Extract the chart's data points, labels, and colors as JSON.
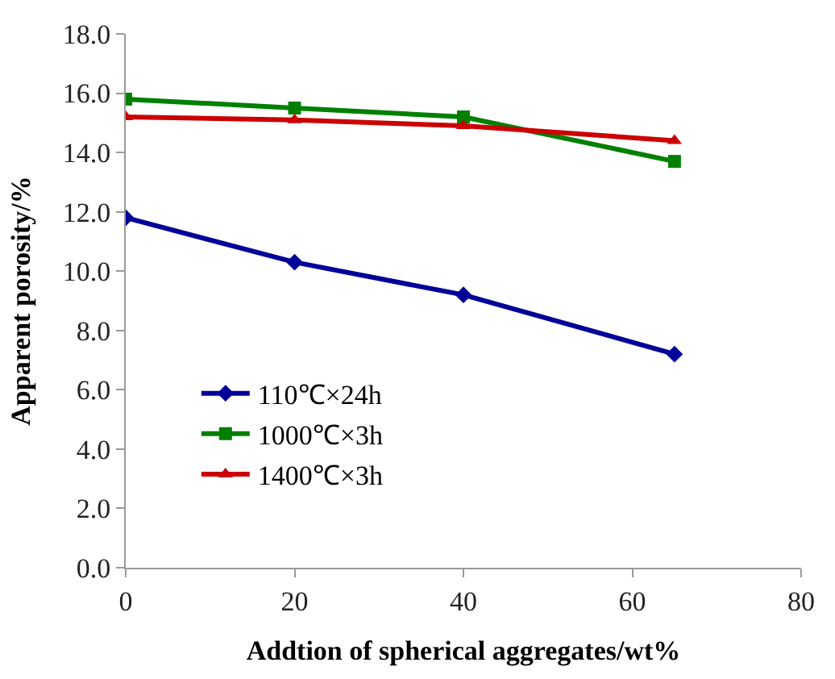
{
  "chart_data": {
    "type": "line",
    "xlabel": "Addtion of spherical aggregates/wt%",
    "ylabel": "Apparent porosity/%",
    "x": [
      0,
      20,
      40,
      65
    ],
    "xlim": [
      0,
      80
    ],
    "xticks": [
      0,
      20,
      40,
      60,
      80
    ],
    "ylim": [
      0,
      18
    ],
    "yticks": [
      {
        "value": 0,
        "label": "0.0"
      },
      {
        "value": 2,
        "label": "2.0"
      },
      {
        "value": 4,
        "label": "4.0"
      },
      {
        "value": 6,
        "label": "6.0"
      },
      {
        "value": 8,
        "label": "8.0"
      },
      {
        "value": 10,
        "label": "10.0"
      },
      {
        "value": 12,
        "label": "12.0"
      },
      {
        "value": 14,
        "label": "14.0"
      },
      {
        "value": 16,
        "label": "16.0"
      },
      {
        "value": 18,
        "label": "18.0"
      }
    ],
    "series": [
      {
        "name": "110℃×24h",
        "color": "#000099",
        "marker": "diamond",
        "values": [
          11.8,
          10.3,
          9.2,
          7.2
        ]
      },
      {
        "name": "1000℃×3h",
        "color": "#008000",
        "marker": "square",
        "values": [
          15.8,
          15.5,
          15.2,
          13.7
        ]
      },
      {
        "name": "1400℃×3h",
        "color": "#cc0000",
        "marker": "triangle",
        "values": [
          15.2,
          15.1,
          14.9,
          14.4
        ]
      }
    ],
    "legend": "bottom left",
    "line_style": "solid"
  }
}
